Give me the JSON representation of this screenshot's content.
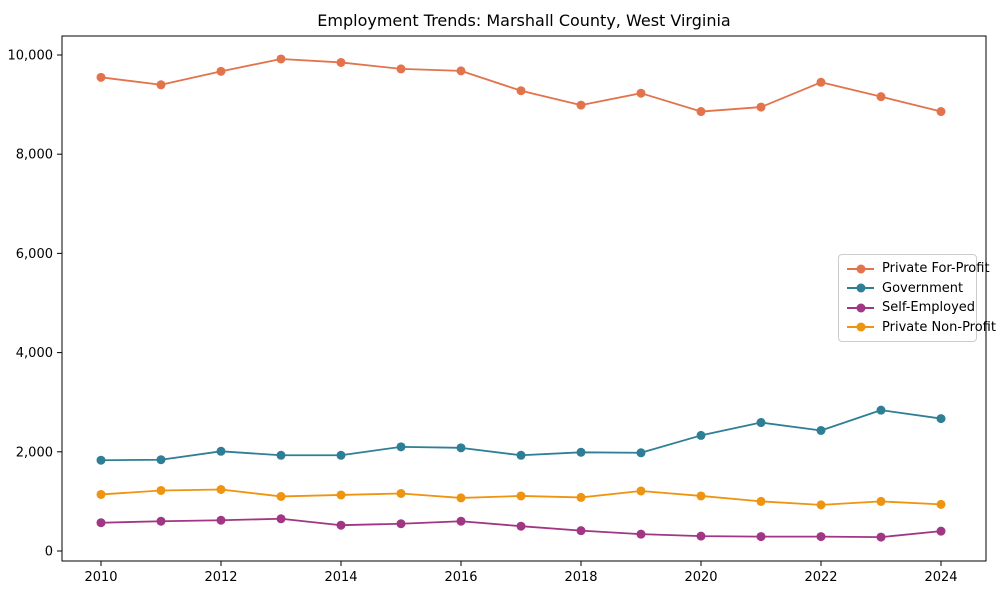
{
  "chart_data": {
    "type": "line",
    "title": "Employment Trends: Marshall County, West Virginia",
    "xlabel": "",
    "ylabel": "",
    "grid": false,
    "legend_position": "center-right",
    "marker": "circle",
    "x": [
      2010,
      2011,
      2012,
      2013,
      2014,
      2015,
      2016,
      2017,
      2018,
      2019,
      2020,
      2021,
      2022,
      2023,
      2024
    ],
    "series": [
      {
        "name": "Private For-Profit",
        "color": "#E2734B",
        "values": [
          9550,
          9400,
          9670,
          9920,
          9850,
          9720,
          9680,
          9280,
          8990,
          9230,
          8860,
          8950,
          9450,
          9160,
          8860
        ]
      },
      {
        "name": "Government",
        "color": "#2E7F95",
        "values": [
          1830,
          1840,
          2010,
          1930,
          1930,
          2100,
          2080,
          1930,
          1990,
          1980,
          2330,
          2590,
          2430,
          2840,
          2670
        ]
      },
      {
        "name": "Self-Employed",
        "color": "#A03684",
        "values": [
          570,
          600,
          620,
          650,
          520,
          550,
          600,
          500,
          410,
          340,
          300,
          290,
          290,
          280,
          400
        ]
      },
      {
        "name": "Private Non-Profit",
        "color": "#EE9410",
        "values": [
          1140,
          1220,
          1240,
          1100,
          1130,
          1160,
          1070,
          1110,
          1080,
          1210,
          1110,
          1000,
          930,
          1000,
          940
        ]
      }
    ],
    "ylim": [
      0,
      10000
    ],
    "yticks": {
      "values": [
        0,
        2000,
        4000,
        6000,
        8000,
        10000
      ],
      "labels": [
        "0",
        "2,000",
        "4,000",
        "6,000",
        "8,000",
        "10,000"
      ]
    },
    "xticks": {
      "values": [
        2010,
        2012,
        2014,
        2016,
        2018,
        2020,
        2022,
        2024
      ],
      "labels": [
        "2010",
        "2012",
        "2014",
        "2016",
        "2018",
        "2020",
        "2022",
        "2024"
      ]
    }
  }
}
